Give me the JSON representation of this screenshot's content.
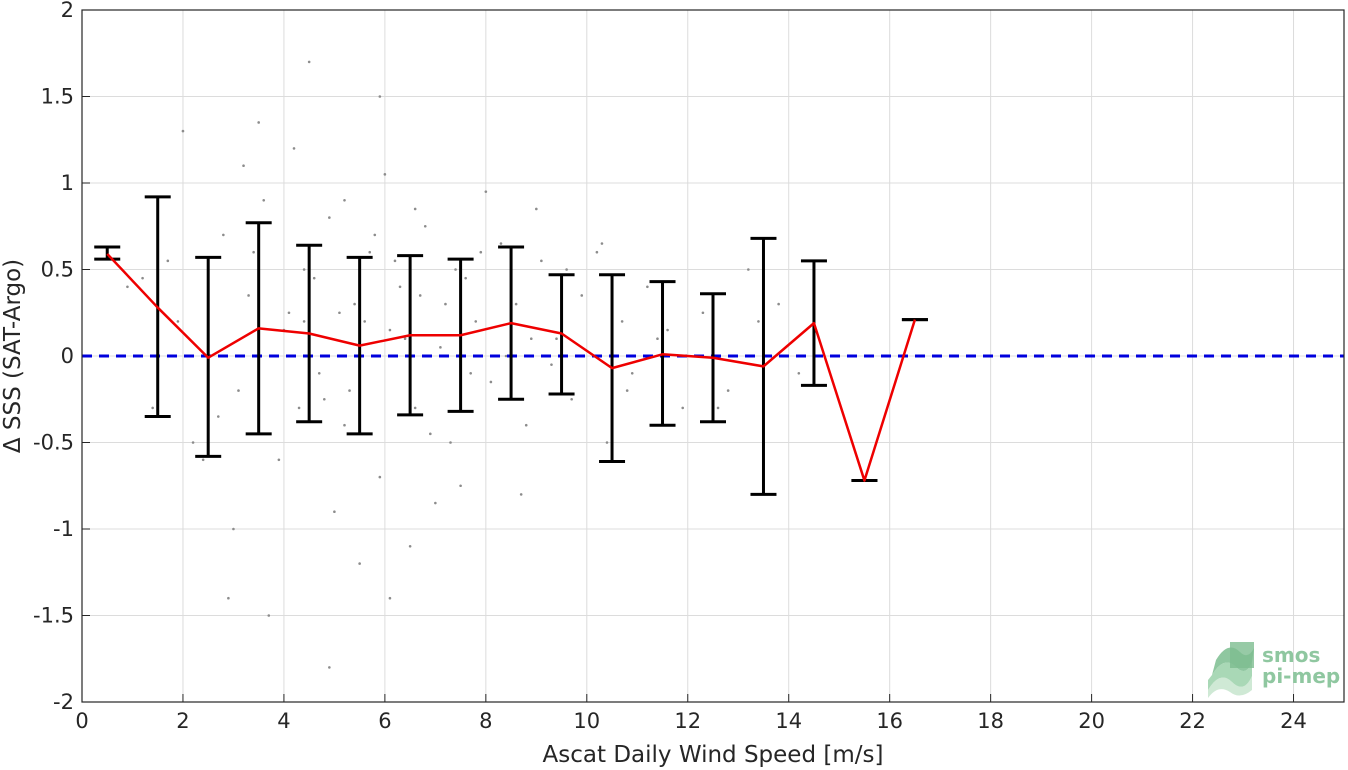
{
  "chart_data": {
    "type": "scatter",
    "xlabel": "Ascat Daily Wind Speed [m/s]",
    "ylabel": "Δ SSS (SAT-Argo)",
    "xlim": [
      0,
      25
    ],
    "ylim": [
      -2,
      2
    ],
    "x_ticks": [
      "0",
      "2",
      "4",
      "6",
      "8",
      "10",
      "12",
      "14",
      "16",
      "18",
      "20",
      "22",
      "24"
    ],
    "y_ticks": [
      "2",
      "1.5",
      "1",
      "0.5",
      "0",
      "-0.5",
      "-1",
      "-1.5",
      "-2"
    ],
    "grid": true,
    "reference_line": {
      "y": 0,
      "style": "dashed",
      "color": "#0000dd"
    },
    "mean_line": {
      "color": "#ee0000",
      "x": [
        0.5,
        1.5,
        2.5,
        3.5,
        4.5,
        5.5,
        6.5,
        7.5,
        8.5,
        9.5,
        10.5,
        11.5,
        12.5,
        13.5,
        14.5,
        15.5,
        16.5
      ],
      "y": [
        0.59,
        0.28,
        -0.01,
        0.16,
        0.13,
        0.06,
        0.12,
        0.12,
        0.19,
        0.13,
        -0.07,
        0.01,
        -0.01,
        -0.06,
        0.19,
        -0.72,
        0.21
      ]
    },
    "error_bars": {
      "color": "#000000",
      "x": [
        0.5,
        1.5,
        2.5,
        3.5,
        4.5,
        5.5,
        6.5,
        7.5,
        8.5,
        9.5,
        10.5,
        11.5,
        12.5,
        13.5,
        14.5,
        15.5,
        16.5
      ],
      "upper": [
        0.63,
        0.92,
        0.57,
        0.77,
        0.64,
        0.57,
        0.58,
        0.56,
        0.63,
        0.47,
        0.47,
        0.43,
        0.36,
        0.68,
        0.55,
        -0.72,
        0.21
      ],
      "lower": [
        0.56,
        -0.35,
        -0.58,
        -0.45,
        -0.38,
        -0.45,
        -0.34,
        -0.32,
        -0.25,
        -0.22,
        -0.61,
        -0.4,
        -0.38,
        -0.8,
        -0.17,
        -0.72,
        0.21
      ]
    },
    "scatter_points": {
      "color": "#8c8c8c",
      "x": [
        1.2,
        1.4,
        1.9,
        2.2,
        2.5,
        2.8,
        3.1,
        3.3,
        3.6,
        3.9,
        4.1,
        4.4,
        4.7,
        4.9,
        5.2,
        5.4,
        5.7,
        5.9,
        6.1,
        6.3,
        6.6,
        6.8,
        7.1,
        7.3,
        7.6,
        7.8,
        8.1,
        8.3,
        8.6,
        8.8,
        9.1,
        9.4,
        9.7,
        9.9,
        10.2,
        10.4,
        10.7,
        10.9,
        11.2,
        11.6,
        11.9,
        12.3,
        12.8,
        13.2,
        13.8,
        14.2,
        0.9,
        2.0,
        3.0,
        4.2,
        5.0,
        6.0,
        7.0,
        8.0,
        9.0,
        4.3,
        5.6,
        6.4,
        7.2,
        3.8,
        4.6,
        5.3,
        6.2,
        7.7,
        8.9,
        2.7,
        3.4,
        5.8,
        6.7,
        4.0,
        4.8,
        5.1,
        6.9,
        7.4,
        8.4,
        9.3,
        3.2,
        2.4,
        1.7,
        10.8,
        11.4,
        12.6,
        13.4,
        5.5,
        6.5,
        4.5,
        3.5,
        7.9,
        8.7,
        9.6,
        4.9,
        5.9,
        6.1,
        3.7,
        2.9,
        10.3,
        6.6,
        5.2,
        4.4,
        7.5
      ],
      "y": [
        0.45,
        -0.3,
        0.2,
        -0.5,
        0.1,
        0.7,
        -0.2,
        0.35,
        0.9,
        -0.6,
        0.25,
        0.5,
        -0.1,
        0.8,
        -0.4,
        0.3,
        0.6,
        -0.7,
        0.15,
        0.4,
        -0.3,
        0.75,
        0.05,
        -0.5,
        0.45,
        0.2,
        -0.15,
        0.65,
        0.3,
        -0.4,
        0.55,
        0.1,
        -0.25,
        0.35,
        0.6,
        -0.5,
        0.2,
        -0.1,
        0.4,
        0.15,
        -0.3,
        0.25,
        -0.2,
        0.5,
        0.3,
        -0.1,
        0.4,
        1.3,
        -1.0,
        1.2,
        -0.9,
        1.05,
        -0.85,
        0.95,
        0.85,
        -0.3,
        0.2,
        0.1,
        0.3,
        0.0,
        0.45,
        -0.2,
        0.55,
        -0.1,
        0.1,
        -0.35,
        0.6,
        0.7,
        0.35,
        0.15,
        -0.25,
        0.25,
        -0.45,
        0.5,
        0.0,
        -0.05,
        1.1,
        -0.6,
        0.55,
        -0.2,
        0.1,
        -0.3,
        0.2,
        -1.2,
        -1.1,
        1.7,
        1.35,
        0.6,
        -0.8,
        0.5,
        -1.8,
        1.5,
        -1.4,
        -1.5,
        -1.4,
        0.65,
        0.85,
        0.9,
        0.2,
        -0.75
      ]
    }
  },
  "logo": {
    "line1": "smos",
    "line2": "pi-mep"
  }
}
